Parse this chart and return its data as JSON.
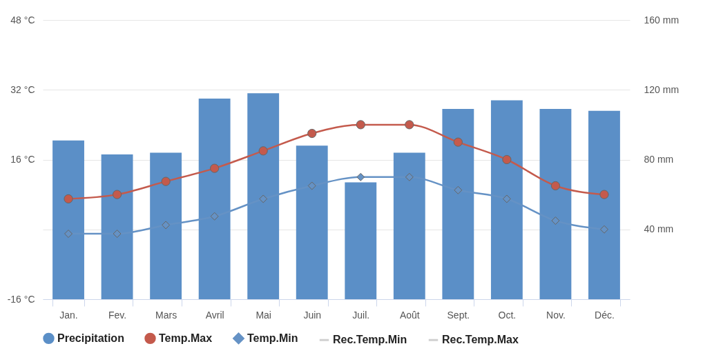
{
  "chart_data": {
    "type": "bar",
    "categories": [
      "Jan.",
      "Fev.",
      "Mars",
      "Avril",
      "Mai",
      "Juin",
      "Juil.",
      "Août",
      "Sept.",
      "Oct.",
      "Nov.",
      "Déc."
    ],
    "series": [
      {
        "name": "Precipitation",
        "axis": "y2",
        "color": "#5b8fc7",
        "values": [
          91,
          83,
          84,
          115,
          118,
          88,
          67,
          84,
          109,
          114,
          109,
          108
        ]
      },
      {
        "name": "Temp.Max",
        "type": "line",
        "color": "#c45a4c",
        "marker": "circle",
        "values": [
          7,
          8,
          11,
          14,
          18,
          22,
          24,
          24,
          20,
          16,
          10,
          8
        ]
      },
      {
        "name": "Temp.Min",
        "type": "line",
        "color": "#6592c5",
        "marker": "diamond",
        "values": [
          -1,
          -1,
          1,
          3,
          7,
          10,
          12,
          12,
          9,
          7,
          2,
          0
        ]
      },
      {
        "name": "Rec.Temp.Min",
        "type": "line",
        "color": "#d0d0d0",
        "values": [
          null,
          null,
          null,
          null,
          null,
          null,
          null,
          null,
          null,
          null,
          null,
          null
        ]
      },
      {
        "name": "Rec.Temp.Max",
        "type": "line",
        "color": "#d0d0d0",
        "values": [
          null,
          null,
          null,
          null,
          null,
          null,
          null,
          null,
          null,
          null,
          null,
          null
        ]
      }
    ],
    "ylim": [
      -16,
      48
    ],
    "yticks": [
      {
        "value": -16,
        "label": "-16 °C"
      },
      {
        "value": 0,
        "label": null
      },
      {
        "value": 16,
        "label": "16 °C"
      },
      {
        "value": 32,
        "label": "32 °C"
      },
      {
        "value": 48,
        "label": "48 °C"
      }
    ],
    "y2lim": [
      0,
      160
    ],
    "y2ticks": [
      {
        "value": 0,
        "label": null
      },
      {
        "value": 40,
        "label": "40 mm"
      },
      {
        "value": 80,
        "label": "80 mm"
      },
      {
        "value": 120,
        "label": "120 mm"
      },
      {
        "value": 160,
        "label": "160 mm"
      }
    ],
    "grid": "y",
    "legend": "bottom"
  }
}
